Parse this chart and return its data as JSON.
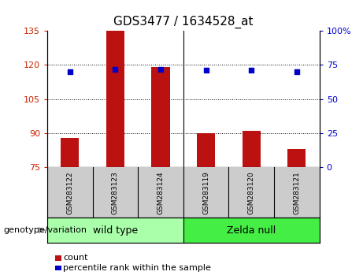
{
  "title": "GDS3477 / 1634528_at",
  "samples": [
    "GSM283122",
    "GSM283123",
    "GSM283124",
    "GSM283119",
    "GSM283120",
    "GSM283121"
  ],
  "bar_values": [
    88,
    135,
    119,
    90,
    91,
    83
  ],
  "bar_bottom": 75,
  "percentile_values": [
    70,
    72,
    72,
    71,
    71,
    70
  ],
  "percentile_scale_min": 0,
  "percentile_scale_max": 100,
  "ylim_left": [
    75,
    135
  ],
  "yticks_left": [
    75,
    90,
    105,
    120,
    135
  ],
  "yticks_right": [
    0,
    25,
    50,
    75,
    100
  ],
  "bar_color": "#bb1111",
  "dot_color": "#0000cc",
  "groups": [
    {
      "label": "wild type",
      "indices": [
        0,
        1,
        2
      ],
      "color": "#aaffaa"
    },
    {
      "label": "Zelda null",
      "indices": [
        3,
        4,
        5
      ],
      "color": "#44ee44"
    }
  ],
  "group_label_prefix": "genotype/variation",
  "legend_count_label": "count",
  "legend_pct_label": "percentile rank within the sample",
  "xlabel_area_bg": "#cccccc",
  "plot_bg": "#ffffff",
  "left_tick_color": "#cc2200",
  "right_tick_color": "#0000cc",
  "title_fontsize": 11,
  "axis_fontsize": 8,
  "label_fontsize": 6.5,
  "group_fontsize": 9,
  "legend_fontsize": 8
}
